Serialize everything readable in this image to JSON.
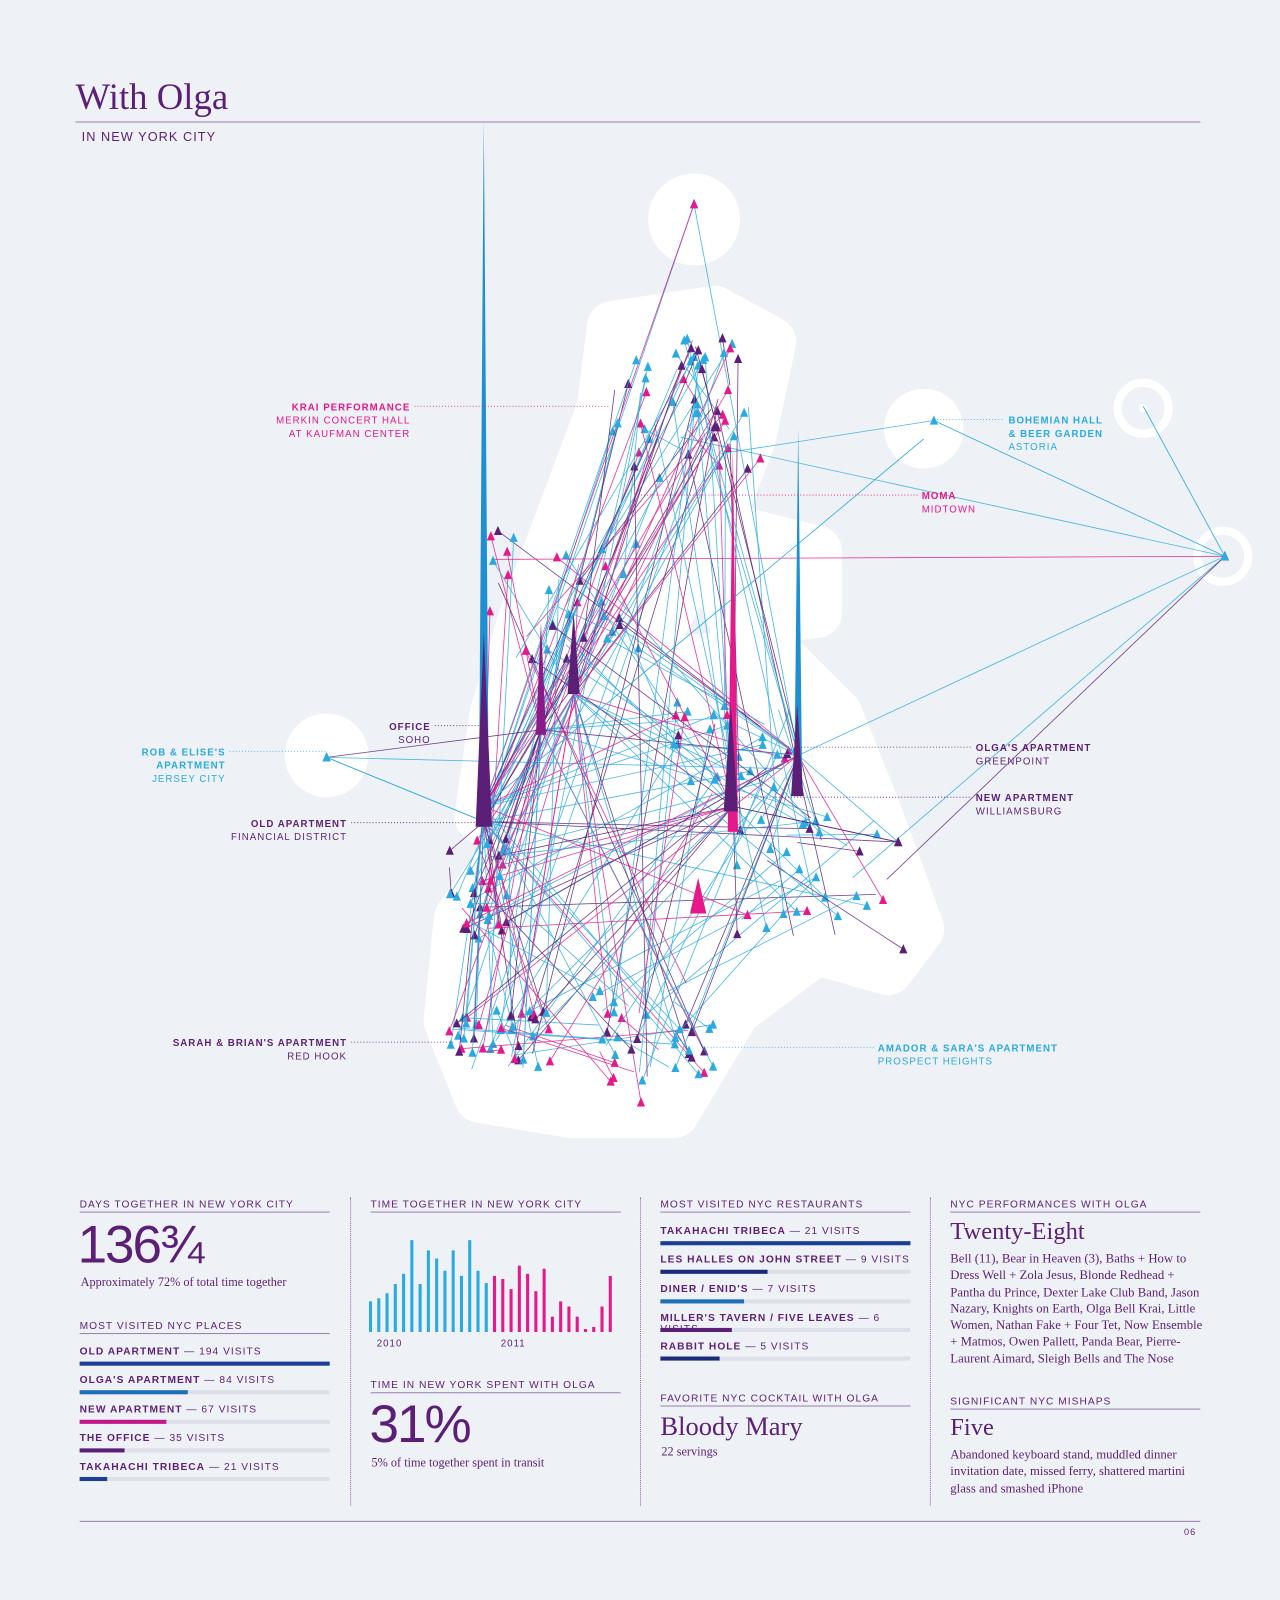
{
  "header": {
    "title": "With Olga",
    "subtitle": "IN NEW YORK CITY"
  },
  "map": {
    "annotations": [
      {
        "title": [
          "KRAI PERFORMANCE"
        ],
        "subtitle": [
          "MERKIN CONCERT HALL",
          "AT KAUFMAN CENTER"
        ],
        "color": "#e5198a"
      },
      {
        "title": [
          "BOHEMIAN HALL",
          "& BEER GARDEN"
        ],
        "subtitle": [
          "ASTORIA"
        ],
        "color": "#29aae1"
      },
      {
        "title": [
          "MOMA"
        ],
        "subtitle": [
          "MIDTOWN"
        ],
        "color": "#e5198a"
      },
      {
        "title": [
          "OFFICE"
        ],
        "subtitle": [
          "SOHO"
        ],
        "color": "#5b1f78"
      },
      {
        "title": [
          "ROB & ELISE'S",
          "APARTMENT"
        ],
        "subtitle": [
          "JERSEY CITY"
        ],
        "color": "#29aae1"
      },
      {
        "title": [
          "OLGA'S APARTMENT"
        ],
        "subtitle": [
          "GREENPOINT"
        ],
        "color": "#5b1f78"
      },
      {
        "title": [
          "NEW APARTMENT"
        ],
        "subtitle": [
          "WILLIAMSBURG"
        ],
        "color": "#5b1f78"
      },
      {
        "title": [
          "OLD APARTMENT"
        ],
        "subtitle": [
          "FINANCIAL DISTRICT"
        ],
        "color": "#5b1f78"
      },
      {
        "title": [
          "SARAH & BRIAN'S APARTMENT"
        ],
        "subtitle": [
          "RED HOOK"
        ],
        "color": "#5b1f78"
      },
      {
        "title": [
          "AMADOR & SARA'S APARTMENT"
        ],
        "subtitle": [
          "PROSPECT HEIGHTS"
        ],
        "color": "#29aae1"
      }
    ]
  },
  "days": {
    "heading": "DAYS TOGETHER IN NEW YORK CITY",
    "value": "136¾",
    "note": "Approximately 72% of total time together"
  },
  "places": {
    "heading": "MOST VISITED NYC PLACES",
    "xlim": [
      0,
      194
    ],
    "items": [
      {
        "name": "OLD APARTMENT",
        "visits": 194,
        "visits_label": "— 194 VISITS",
        "color": "#1b3f94"
      },
      {
        "name": "OLGA'S APARTMENT",
        "visits": 84,
        "visits_label": "— 84 VISITS",
        "color": "#1e6fb8"
      },
      {
        "name": "NEW APARTMENT",
        "visits": 67,
        "visits_label": "— 67 VISITS",
        "color": "#c2188a"
      },
      {
        "name": "THE OFFICE",
        "visits": 35,
        "visits_label": "— 35 VISITS",
        "color": "#5b1f78"
      },
      {
        "name": "TAKAHACHI TRIBECA",
        "visits": 21,
        "visits_label": "— 21 VISITS",
        "color": "#1b3f94"
      }
    ]
  },
  "time_chart": {
    "heading": "TIME TOGETHER IN NEW YORK CITY",
    "chart_data": {
      "type": "bar",
      "ylim": [
        0,
        100
      ],
      "categories": [
        null,
        "2010",
        null,
        null,
        null,
        null,
        null,
        null,
        null,
        null,
        null,
        null,
        null,
        null,
        null,
        null,
        "2011",
        null,
        null,
        null,
        null,
        null,
        null,
        null,
        null,
        null,
        null,
        null,
        null,
        null
      ],
      "series": [
        {
          "color": "#29aae1",
          "values": [
            30,
            33,
            38,
            47,
            57,
            90,
            47,
            80,
            72,
            60,
            80,
            55,
            90,
            60,
            48,
            null,
            null,
            null,
            null,
            null,
            null,
            null,
            null,
            null,
            null,
            null,
            null,
            null,
            null,
            null
          ]
        },
        {
          "color": "#e5198a",
          "values": [
            null,
            null,
            null,
            null,
            null,
            null,
            null,
            null,
            null,
            null,
            null,
            null,
            null,
            null,
            null,
            55,
            52,
            42,
            65,
            57,
            40,
            62,
            15,
            30,
            25,
            15,
            3,
            5,
            25,
            55
          ]
        }
      ]
    }
  },
  "transit": {
    "heading": "TIME IN NEW YORK SPENT WITH OLGA",
    "value": "31%",
    "note": "5% of time together spent in transit"
  },
  "restaurants": {
    "heading": "MOST VISITED NYC RESTAURANTS",
    "xlim": [
      0,
      21
    ],
    "items": [
      {
        "name": "TAKAHACHI TRIBECA",
        "visits": 21,
        "visits_label": "— 21 VISITS",
        "color": "#1b3f94"
      },
      {
        "name": "LES HALLES ON JOHN STREET",
        "visits": 9,
        "visits_label": "— 9 VISITS",
        "color": "#1b2a7a"
      },
      {
        "name": "DINER / ENID'S",
        "visits": 7,
        "visits_label": "— 7 VISITS",
        "color": "#1e6fb8"
      },
      {
        "name": "MILLER'S TAVERN / FIVE LEAVES",
        "visits": 6,
        "visits_label": "— 6 VISITS",
        "color": "#5b1f78"
      },
      {
        "name": "RABBIT HOLE",
        "visits": 5,
        "visits_label": "— 5 VISITS",
        "color": "#1b2a7a"
      }
    ]
  },
  "cocktail": {
    "heading": "FAVORITE NYC COCKTAIL WITH OLGA",
    "value": "Bloody Mary",
    "note": "22 servings"
  },
  "performances": {
    "heading": "NYC PERFORMANCES WITH OLGA",
    "value": "Twenty-Eight",
    "note": "Bell (11), Bear in Heaven (3), Baths + How to Dress Well + Zola Jesus, Blonde Redhead + Pantha du Prince, Dexter Lake Club Band, Jason Nazary, Knights on Earth, Olga Bell Krai, Little Women, Nathan Fake + Four Tet, Now Ensemble + Matmos, Owen Pallett, Panda Bear, Pierre-Laurent Aimard, Sleigh Bells and The Nose"
  },
  "mishaps": {
    "heading": "SIGNIFICANT NYC MISHAPS",
    "value": "Five",
    "note": "Abandoned keyboard stand, muddled dinner invitation date, missed ferry, shattered martini glass and smashed iPhone"
  },
  "footer": {
    "page": "06"
  }
}
